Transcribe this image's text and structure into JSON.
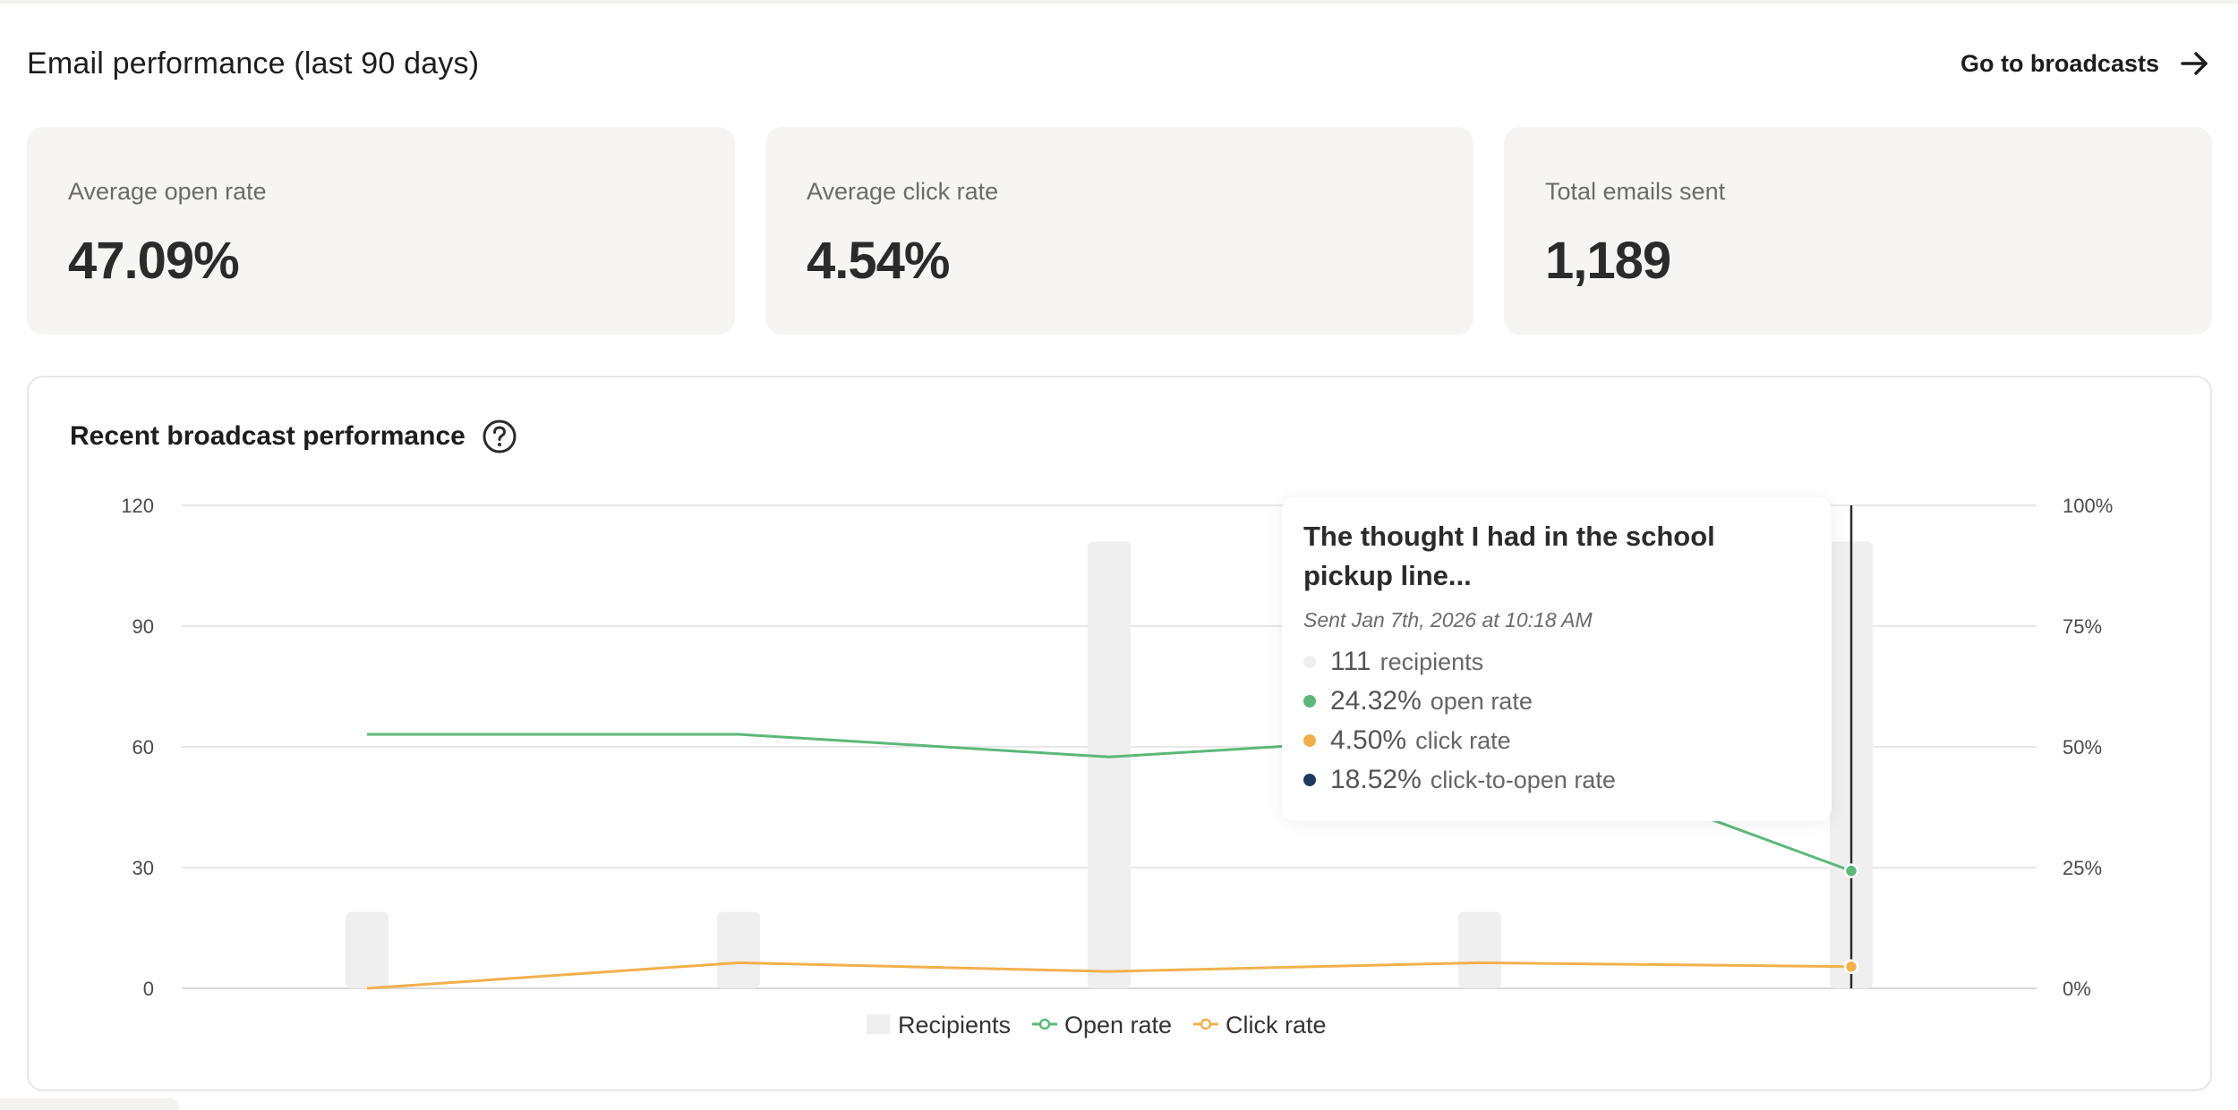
{
  "header": {
    "title": "Email performance (last 90 days)",
    "go_to_broadcasts": "Go to broadcasts",
    "arrow_icon": "arrow-right-icon"
  },
  "stats": [
    {
      "label": "Average open rate",
      "value": "47.09%"
    },
    {
      "label": "Average click rate",
      "value": "4.54%"
    },
    {
      "label": "Total emails sent",
      "value": "1,189"
    }
  ],
  "chart_panel": {
    "title": "Recent broadcast performance",
    "help_icon": "question-circle-icon"
  },
  "chart_data": {
    "type": "bar",
    "categories": [
      "",
      "",
      "",
      "",
      ""
    ],
    "series": [
      {
        "name": "Recipients",
        "type": "bar",
        "axis": "left",
        "values": [
          19,
          19,
          111,
          19,
          111
        ],
        "color": "#efefef"
      },
      {
        "name": "Open rate",
        "type": "line",
        "axis": "right",
        "unit": "%",
        "values": [
          52.6,
          52.6,
          47.9,
          52.6,
          24.32
        ],
        "color": "#5cb87a"
      },
      {
        "name": "Click rate",
        "type": "line",
        "axis": "right",
        "unit": "%",
        "values": [
          0,
          5.3,
          3.5,
          5.3,
          4.5
        ],
        "color": "#f2b04c"
      }
    ],
    "left_axis": {
      "ticks": [
        "120",
        "90",
        "60",
        "30",
        "0"
      ],
      "ylim": [
        0,
        120
      ]
    },
    "right_axis": {
      "ticks": [
        "100%",
        "75%",
        "50%",
        "25%",
        "0%"
      ],
      "ylim": [
        0,
        100
      ]
    },
    "legend": [
      "Recipients",
      "Open rate",
      "Click rate"
    ],
    "legend_position": "bottom-center",
    "grid": true,
    "highlighted_index": 4
  },
  "tooltip": {
    "title": "The thought I had in the school pickup line...",
    "sent": "Sent Jan 7th, 2026 at 10:18 AM",
    "rows": [
      {
        "value": "111",
        "label": "recipients",
        "color": "#efefef"
      },
      {
        "value": "24.32%",
        "label": "open rate",
        "color": "#5cb87a"
      },
      {
        "value": "4.50%",
        "label": "click rate",
        "color": "#f2b04c"
      },
      {
        "value": "18.52%",
        "label": "click-to-open rate",
        "color": "#1f3a5f"
      }
    ]
  }
}
